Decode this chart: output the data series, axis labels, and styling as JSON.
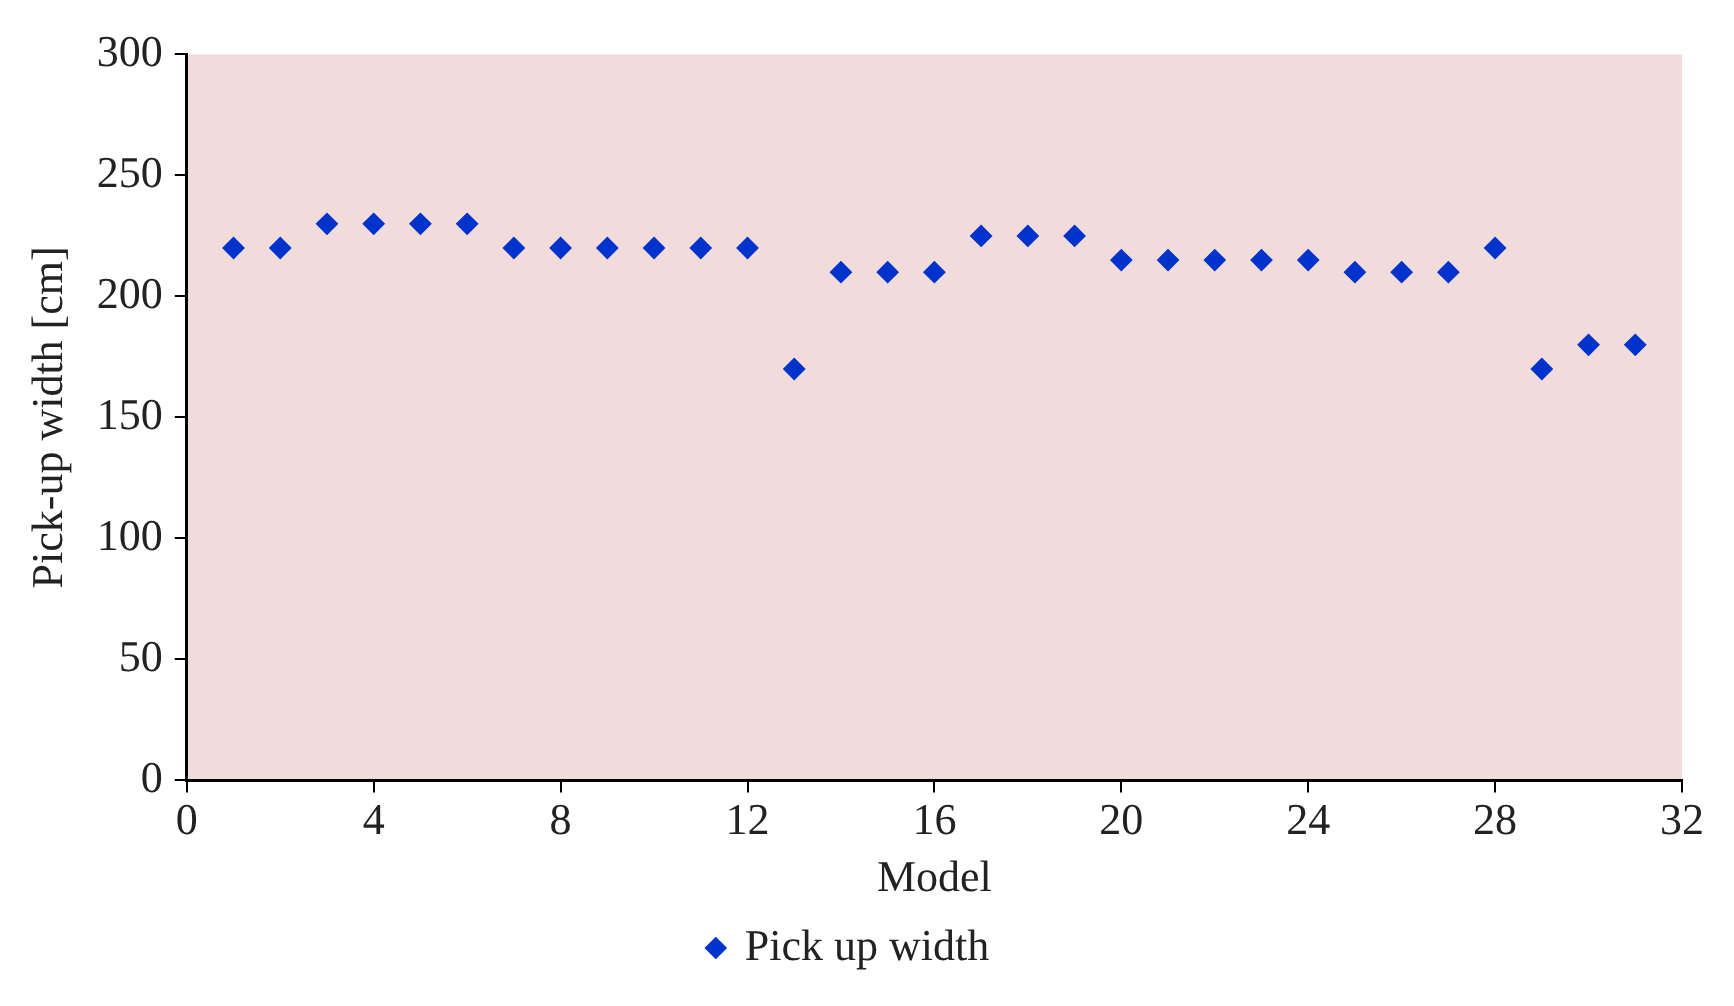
{
  "chart_data": {
    "type": "scatter",
    "xlabel": "Model",
    "ylabel": "Pick-up width [cm]",
    "x": [
      1,
      2,
      3,
      4,
      5,
      6,
      7,
      8,
      9,
      10,
      11,
      12,
      13,
      14,
      15,
      16,
      17,
      18,
      19,
      20,
      21,
      22,
      23,
      24,
      25,
      26,
      27,
      28,
      29,
      30,
      31
    ],
    "series": [
      {
        "name": "Pick up width",
        "color": "#0033cc",
        "values": [
          220,
          220,
          230,
          230,
          230,
          230,
          220,
          220,
          220,
          220,
          220,
          220,
          170,
          210,
          210,
          210,
          225,
          225,
          225,
          215,
          215,
          215,
          215,
          215,
          210,
          210,
          210,
          220,
          170,
          180,
          180
        ]
      }
    ],
    "xlim": [
      0,
      32
    ],
    "xticks": [
      0,
      4,
      8,
      12,
      16,
      20,
      24,
      28,
      32
    ],
    "ylim": [
      0,
      300
    ],
    "yticks": [
      0,
      50,
      100,
      150,
      200,
      250,
      300
    ],
    "grid": false,
    "legend": "bottom",
    "marker": "diamond"
  }
}
